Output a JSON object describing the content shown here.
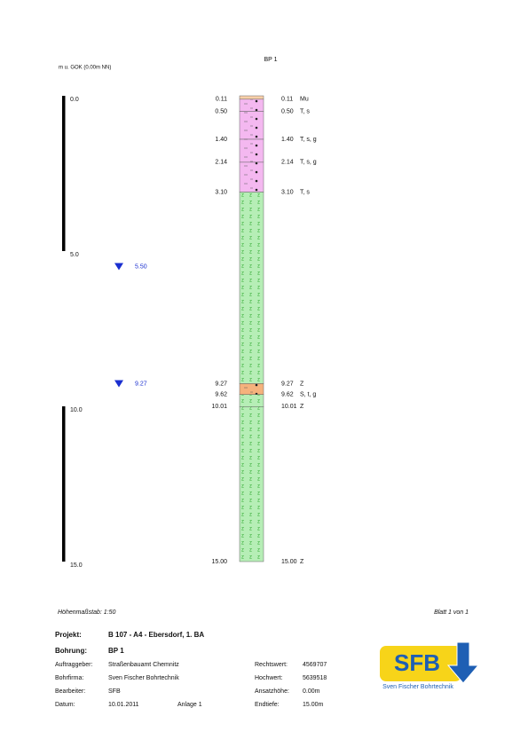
{
  "header": {
    "title": "BP 1",
    "unit": "m u. GOK (0.00m NN)"
  },
  "scale": {
    "labels": [
      "0.0",
      "5.0",
      "10.0",
      "15.0"
    ]
  },
  "water_levels": [
    {
      "depth": "5.50"
    },
    {
      "depth": "9.27"
    }
  ],
  "layers": [
    {
      "bottom": "0.11",
      "code": "Mu",
      "color": "#f8cfa8",
      "pattern": "none"
    },
    {
      "bottom": "0.50",
      "code": "T, s",
      "color": "#f4b8f0",
      "pattern": "dots"
    },
    {
      "bottom": "1.40",
      "code": "T, s, g",
      "color": "#f4b8f0",
      "pattern": "dots"
    },
    {
      "bottom": "2.14",
      "code": "T, s, g",
      "color": "#f4b8f0",
      "pattern": "dots"
    },
    {
      "bottom": "3.10",
      "code": "T, s",
      "color": "#f4b8f0",
      "pattern": "dots"
    },
    {
      "bottom": "9.27",
      "code": "Z",
      "color": "#b6eeb6",
      "pattern": "z"
    },
    {
      "bottom": "9.62",
      "code": "S, t, g",
      "color": "#f5b27c",
      "pattern": "dots"
    },
    {
      "bottom": "10.01",
      "code": "Z",
      "color": "#b6eeb6",
      "pattern": "z"
    },
    {
      "bottom": "15.00",
      "code": "Z",
      "color": "#b6eeb6",
      "pattern": "z"
    }
  ],
  "footer": {
    "scale": "Höhenmaßstab: 1:50",
    "sheet": "Blatt 1 von 1"
  },
  "info": {
    "project_label": "Projekt:",
    "project": "B 107 - A4 - Ebersdorf, 1. BA",
    "boring_label": "Bohrung:",
    "boring": "BP 1",
    "rows": [
      [
        "Auftraggeber:",
        "Straßenbauamt Chemnitz",
        "",
        "Rechtswert:",
        "4569707"
      ],
      [
        "Bohrfirma:",
        "Sven Fischer Bohrtechnik",
        "",
        "Hochwert:",
        "5639518"
      ],
      [
        "Bearbeiter:",
        "SFB",
        "",
        "Ansatzhöhe:",
        "0.00m"
      ],
      [
        "Datum:",
        "10.01.2011",
        "Anlage 1",
        "Endtiefe:",
        "15.00m"
      ]
    ]
  },
  "logo": {
    "text": "SFB",
    "subtitle": "Sven Fischer Bohrtechnik"
  }
}
